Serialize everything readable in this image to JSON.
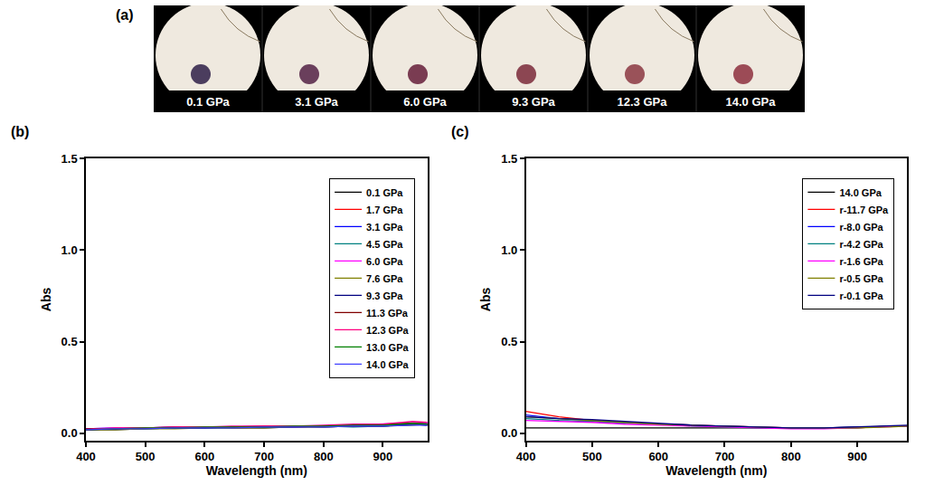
{
  "panel_a": {
    "label": "(a)",
    "photos": [
      {
        "label": "0.1 GPa",
        "sample_color": "#4b3d5e"
      },
      {
        "label": "3.1 GPa",
        "sample_color": "#6a3f5c"
      },
      {
        "label": "6.0 GPa",
        "sample_color": "#7a3c52"
      },
      {
        "label": "9.3 GPa",
        "sample_color": "#8c4652"
      },
      {
        "label": "12.3 GPa",
        "sample_color": "#9a5259"
      },
      {
        "label": "14.0 GPa",
        "sample_color": "#9c4b56"
      }
    ]
  },
  "chart_data": [
    {
      "type": "line",
      "title": "(b)",
      "x_label": "Wavelength (nm)",
      "y_label": "Abs",
      "x": [
        400,
        450,
        500,
        550,
        600,
        650,
        700,
        750,
        800,
        850,
        900,
        950,
        975
      ],
      "xlim": [
        400,
        975
      ],
      "ylim": [
        -0.04,
        1.5
      ],
      "xticks": [
        400,
        500,
        600,
        700,
        800,
        900
      ],
      "yticks": [
        {
          "value": 0,
          "label": "0.0"
        },
        {
          "value": 0.5,
          "label": "0.5"
        },
        {
          "value": 1,
          "label": "1.0"
        },
        {
          "value": 1.5,
          "label": "1.5"
        }
      ],
      "legend": "upper right",
      "series": [
        {
          "name": "0.1 GPa",
          "color": "#000000",
          "values": [
            0.02,
            0.02,
            0.025,
            0.03,
            0.03,
            0.03,
            0.03,
            0.035,
            0.035,
            0.04,
            0.04,
            0.05,
            0.045
          ]
        },
        {
          "name": "1.7 GPa",
          "color": "#ff0000",
          "values": [
            0.02,
            0.025,
            0.03,
            0.03,
            0.035,
            0.03,
            0.035,
            0.035,
            0.04,
            0.04,
            0.045,
            0.05,
            0.05
          ]
        },
        {
          "name": "3.1 GPa",
          "color": "#0000ff",
          "values": [
            0.025,
            0.03,
            0.03,
            0.035,
            0.03,
            0.035,
            0.035,
            0.04,
            0.035,
            0.04,
            0.045,
            0.05,
            0.055
          ]
        },
        {
          "name": "4.5 GPa",
          "color": "#008080",
          "values": [
            0.02,
            0.025,
            0.025,
            0.03,
            0.03,
            0.03,
            0.035,
            0.035,
            0.04,
            0.035,
            0.04,
            0.045,
            0.05
          ]
        },
        {
          "name": "6.0 GPa",
          "color": "#ff00ff",
          "values": [
            0.025,
            0.03,
            0.03,
            0.03,
            0.035,
            0.035,
            0.04,
            0.035,
            0.04,
            0.045,
            0.05,
            0.055,
            0.06
          ]
        },
        {
          "name": "7.6 GPa",
          "color": "#808000",
          "values": [
            0.02,
            0.02,
            0.025,
            0.025,
            0.03,
            0.03,
            0.03,
            0.035,
            0.035,
            0.04,
            0.04,
            0.045,
            0.05
          ]
        },
        {
          "name": "9.3 GPa",
          "color": "#000080",
          "values": [
            0.02,
            0.025,
            0.03,
            0.03,
            0.03,
            0.035,
            0.035,
            0.035,
            0.04,
            0.04,
            0.04,
            0.05,
            0.045
          ]
        },
        {
          "name": "11.3 GPa",
          "color": "#800000",
          "values": [
            0.025,
            0.025,
            0.03,
            0.035,
            0.035,
            0.035,
            0.04,
            0.04,
            0.04,
            0.045,
            0.05,
            0.055,
            0.05
          ]
        },
        {
          "name": "12.3 GPa",
          "color": "#ff0080",
          "values": [
            0.02,
            0.03,
            0.03,
            0.035,
            0.035,
            0.04,
            0.04,
            0.04,
            0.045,
            0.05,
            0.05,
            0.065,
            0.06
          ]
        },
        {
          "name": "13.0 GPa",
          "color": "#008000",
          "values": [
            0.02,
            0.025,
            0.03,
            0.03,
            0.035,
            0.035,
            0.035,
            0.04,
            0.04,
            0.045,
            0.045,
            0.055,
            0.05
          ]
        },
        {
          "name": "14.0 GPa",
          "color": "#4040ff",
          "values": [
            0.02,
            0.025,
            0.025,
            0.03,
            0.03,
            0.03,
            0.035,
            0.035,
            0.035,
            0.04,
            0.04,
            0.045,
            0.045
          ]
        }
      ]
    },
    {
      "type": "line",
      "title": "(c)",
      "x_label": "Wavelength (nm)",
      "y_label": "Abs",
      "x": [
        400,
        450,
        500,
        550,
        600,
        650,
        700,
        750,
        800,
        850,
        900,
        950,
        975
      ],
      "xlim": [
        400,
        975
      ],
      "ylim": [
        -0.04,
        1.5
      ],
      "xticks": [
        400,
        500,
        600,
        700,
        800,
        900
      ],
      "yticks": [
        {
          "value": 0,
          "label": "0.0"
        },
        {
          "value": 0.5,
          "label": "0.5"
        },
        {
          "value": 1,
          "label": "1.0"
        },
        {
          "value": 1.5,
          "label": "1.5"
        }
      ],
      "legend": "upper right",
      "series": [
        {
          "name": "14.0 GPa",
          "color": "#000000",
          "values": [
            0.03,
            0.03,
            0.03,
            0.03,
            0.03,
            0.03,
            0.03,
            0.03,
            0.03,
            0.03,
            0.035,
            0.04,
            0.04
          ]
        },
        {
          "name": "r-11.7 GPa",
          "color": "#ff0000",
          "values": [
            0.12,
            0.09,
            0.07,
            0.06,
            0.05,
            0.045,
            0.04,
            0.035,
            0.03,
            0.03,
            0.03,
            0.04,
            0.04
          ]
        },
        {
          "name": "r-8.0 GPa",
          "color": "#0000ff",
          "values": [
            0.1,
            0.08,
            0.07,
            0.06,
            0.05,
            0.045,
            0.04,
            0.035,
            0.03,
            0.03,
            0.035,
            0.04,
            0.04
          ]
        },
        {
          "name": "r-4.2 GPa",
          "color": "#008080",
          "values": [
            0.08,
            0.07,
            0.065,
            0.055,
            0.05,
            0.04,
            0.035,
            0.03,
            0.03,
            0.03,
            0.03,
            0.04,
            0.04
          ]
        },
        {
          "name": "r-1.6 GPa",
          "color": "#ff00ff",
          "values": [
            0.07,
            0.065,
            0.06,
            0.05,
            0.045,
            0.04,
            0.035,
            0.03,
            0.025,
            0.025,
            0.03,
            0.035,
            0.04
          ]
        },
        {
          "name": "r-0.5 GPa",
          "color": "#808000",
          "values": [
            0.09,
            0.08,
            0.07,
            0.06,
            0.05,
            0.045,
            0.04,
            0.035,
            0.03,
            0.03,
            0.03,
            0.035,
            0.04
          ]
        },
        {
          "name": "r-0.1 GPa",
          "color": "#000080",
          "values": [
            0.09,
            0.08,
            0.075,
            0.065,
            0.055,
            0.045,
            0.04,
            0.035,
            0.03,
            0.03,
            0.035,
            0.04,
            0.045
          ]
        }
      ]
    }
  ]
}
